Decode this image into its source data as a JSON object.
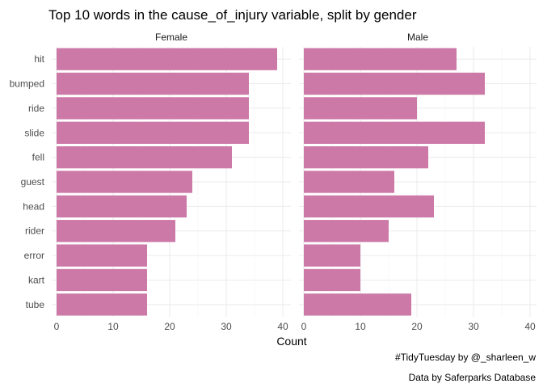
{
  "chart_data": {
    "type": "bar",
    "orientation": "horizontal",
    "title": "Top 10 words in the cause_of_injury variable, split by gender",
    "xlabel": "Count",
    "ylabel": "",
    "xlim": [
      0,
      40
    ],
    "x_ticks": [
      "0",
      "10",
      "20",
      "30",
      "40"
    ],
    "grid": true,
    "bar_color": "#cc79a7",
    "categories": [
      "hit",
      "bumped",
      "ride",
      "slide",
      "fell",
      "guest",
      "head",
      "rider",
      "error",
      "kart",
      "tube"
    ],
    "panels": [
      {
        "name": "Female",
        "values": [
          39,
          34,
          34,
          34,
          31,
          24,
          23,
          21,
          16,
          16,
          16
        ]
      },
      {
        "name": "Male",
        "values": [
          27,
          32,
          20,
          32,
          22,
          16,
          23,
          15,
          10,
          10,
          19
        ]
      }
    ],
    "captions": [
      "#TidyTuesday by @_sharleen_w",
      "Data by Saferparks Database"
    ]
  }
}
